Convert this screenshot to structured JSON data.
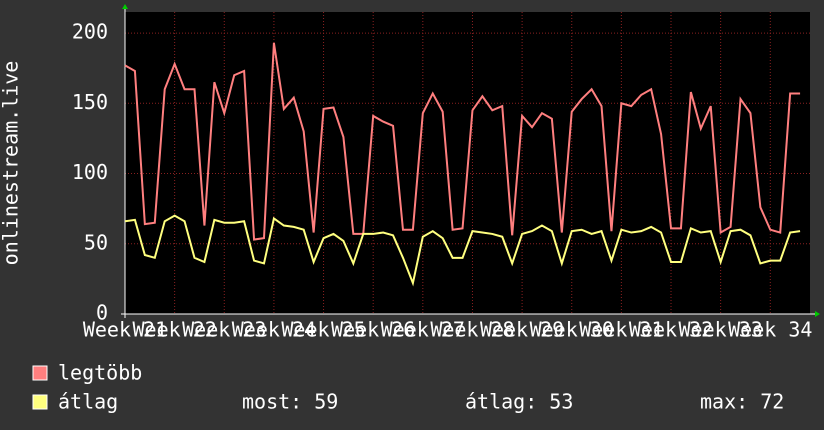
{
  "chart_data": {
    "type": "line",
    "ylabel": "onlinestream.live",
    "x": [
      21,
      21.2,
      21.4,
      21.6,
      21.8,
      22,
      22.2,
      22.4,
      22.6,
      22.8,
      23,
      23.2,
      23.4,
      23.6,
      23.8,
      24,
      24.2,
      24.4,
      24.6,
      24.8,
      25,
      25.2,
      25.4,
      25.6,
      25.8,
      26,
      26.2,
      26.4,
      26.6,
      26.8,
      27,
      27.2,
      27.4,
      27.6,
      27.8,
      28,
      28.2,
      28.4,
      28.6,
      28.8,
      29,
      29.2,
      29.4,
      29.6,
      29.8,
      30,
      30.2,
      30.4,
      30.6,
      30.8,
      31,
      31.2,
      31.4,
      31.6,
      31.8,
      32,
      32.2,
      32.4,
      32.6,
      32.8,
      33,
      33.2,
      33.4,
      33.6,
      33.8,
      34,
      34.2,
      34.4,
      34.6
    ],
    "series": [
      {
        "name": "legtöbb",
        "color": "#ff7f7f",
        "values": [
          177,
          173,
          64,
          65,
          160,
          178,
          160,
          160,
          63,
          165,
          143,
          170,
          173,
          53,
          54,
          193,
          146,
          154,
          130,
          58,
          146,
          147,
          126,
          57,
          57,
          141,
          137,
          134,
          60,
          60,
          143,
          157,
          144,
          60,
          61,
          145,
          155,
          145,
          148,
          56,
          141,
          133,
          143,
          139,
          58,
          144,
          153,
          160,
          148,
          59,
          150,
          148,
          156,
          160,
          128,
          61,
          61,
          158,
          132,
          148,
          58,
          62,
          153,
          143,
          76,
          60,
          58,
          157,
          157
        ]
      },
      {
        "name": "átlag",
        "color": "#ffff7f",
        "values": [
          66,
          67,
          42,
          40,
          66,
          70,
          66,
          40,
          37,
          67,
          65,
          65,
          66,
          38,
          36,
          68,
          63,
          62,
          60,
          37,
          54,
          57,
          52,
          36,
          57,
          57,
          58,
          56,
          40,
          22,
          55,
          59,
          54,
          40,
          40,
          59,
          58,
          57,
          55,
          36,
          57,
          59,
          63,
          59,
          36,
          59,
          60,
          57,
          59,
          38,
          60,
          58,
          59,
          62,
          58,
          37,
          37,
          61,
          58,
          59,
          37,
          59,
          60,
          56,
          36,
          38,
          38,
          58,
          59
        ]
      }
    ],
    "xlim": [
      21,
      34.8
    ],
    "xticks": [
      {
        "value": 21,
        "label": "Week 21"
      },
      {
        "value": 22,
        "label": "Week 22"
      },
      {
        "value": 23,
        "label": "Week 23"
      },
      {
        "value": 24,
        "label": "Week 24"
      },
      {
        "value": 25,
        "label": "Week 25"
      },
      {
        "value": 26,
        "label": "Week 26"
      },
      {
        "value": 27,
        "label": "Week 27"
      },
      {
        "value": 28,
        "label": "Week 28"
      },
      {
        "value": 29,
        "label": "Week 29"
      },
      {
        "value": 30,
        "label": "Week 30"
      },
      {
        "value": 31,
        "label": "Week 31"
      },
      {
        "value": 32,
        "label": "Week 32"
      },
      {
        "value": 33,
        "label": "Week 33"
      },
      {
        "value": 34,
        "label": "Week 34"
      }
    ],
    "ylim": [
      0,
      215
    ],
    "yticks": [
      0,
      50,
      100,
      150,
      200
    ],
    "grid": true,
    "stats": [
      "most: 59",
      "átlag: 53",
      "max: 72"
    ]
  }
}
